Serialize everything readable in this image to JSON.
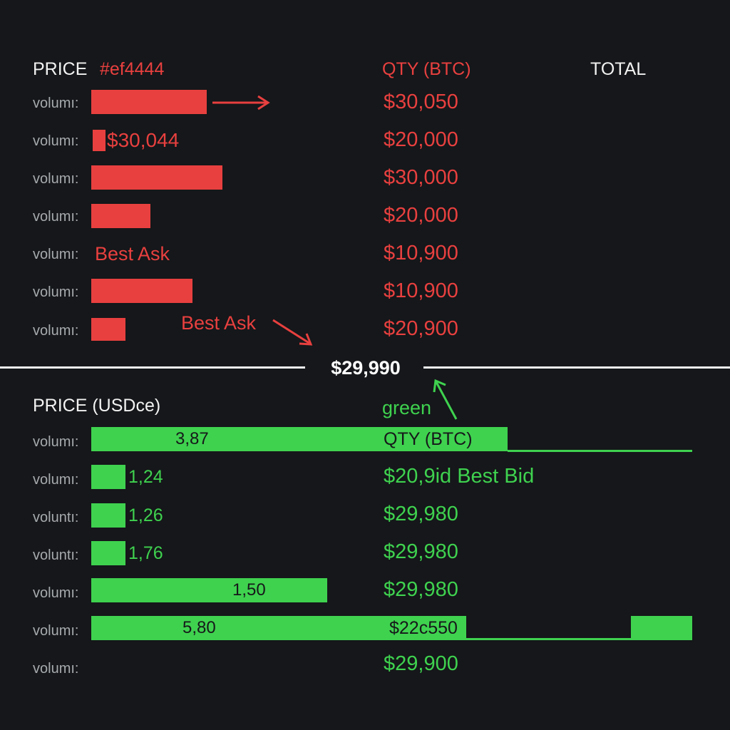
{
  "colors": {
    "ask": "#e8403f",
    "bid": "#3fd24f",
    "background": "#15171a",
    "text": "#f2f2f2"
  },
  "ask_header": {
    "price": "PRICE",
    "color_code": "#ef4444",
    "qty": "QTY (BTC)",
    "total": "TOTAL"
  },
  "asks": [
    {
      "vol_label": "volumı:",
      "price": "$30,050",
      "bar_label": ""
    },
    {
      "vol_label": "volumı:",
      "price": "$20,000",
      "bar_label": "$30,044"
    },
    {
      "vol_label": "volumı:",
      "price": "$30,000",
      "bar_label": ""
    },
    {
      "vol_label": "volumı:",
      "price": "$20,000",
      "bar_label": ""
    },
    {
      "vol_label": "volumı:",
      "price": "$10,900",
      "bar_label": "Best Ask"
    },
    {
      "vol_label": "volumı:",
      "price": "$10,900",
      "bar_label": ""
    },
    {
      "vol_label": "volumı:",
      "price": "$20,900",
      "bar_label": ""
    }
  ],
  "best_ask_annotation": "Best Ask",
  "mid_price": "$29,990",
  "bid_header": {
    "price": "PRICE (USDce)",
    "color_word": "green",
    "qty": "QTY (BTC)"
  },
  "bids": [
    {
      "vol_label": "volumı:",
      "bar_label": "3,87",
      "price": ""
    },
    {
      "vol_label": "volumı:",
      "bar_label": "1,24",
      "price": "$20,9id Best Bid"
    },
    {
      "vol_label": "voluntı:",
      "bar_label": "1,26",
      "price": "$29,980"
    },
    {
      "vol_label": "voluntı:",
      "bar_label": "1,76",
      "price": "$29,980"
    },
    {
      "vol_label": "volumı:",
      "bar_label": "1,50",
      "price": "$29,980"
    },
    {
      "vol_label": "volumı:",
      "bar_label": "5,80",
      "price": "$22c550"
    },
    {
      "vol_label": "volumı:",
      "bar_label": "",
      "price": "$29,900"
    }
  ]
}
